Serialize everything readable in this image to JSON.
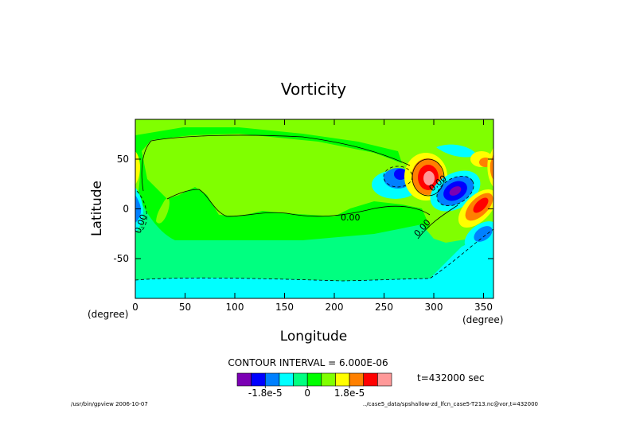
{
  "chart_data": {
    "type": "contour",
    "title": "Vorticity",
    "xlabel": "Longitude",
    "ylabel": "Latitude",
    "x_unit": "(degree)",
    "y_unit": "(degree)",
    "xlim": [
      0,
      360
    ],
    "ylim": [
      -90,
      90
    ],
    "x_ticks": [
      "0",
      "50",
      "100",
      "150",
      "200",
      "250",
      "300",
      "350"
    ],
    "y_ticks": [
      "-50",
      "0",
      "50"
    ],
    "contour_labels": [
      "0.00",
      "0.00",
      "0.00",
      "0.00"
    ],
    "contour_interval_text": "CONTOUR INTERVAL = 6.000E-06",
    "time_text": "t=432000 sec",
    "colorbar": {
      "colors": [
        "#7b00b4",
        "#0000ff",
        "#0080ff",
        "#00ffff",
        "#00ff80",
        "#00ff00",
        "#80ff00",
        "#ffff00",
        "#ff8000",
        "#ff0000",
        "#ff9999"
      ],
      "tick_labels": [
        "-1.8e-5",
        "0",
        "1.8e-5"
      ]
    },
    "palette": {
      "violet": "#7b00b4",
      "blue": "#0000ff",
      "azure": "#0080ff",
      "cyan": "#00ffff",
      "spring": "#00ff80",
      "green": "#00ff00",
      "lime": "#80ff00",
      "yellow": "#ffff00",
      "orange": "#ff8000",
      "red": "#ff0000",
      "pink": "#ff9999"
    }
  },
  "footer": {
    "left": "/usr/bin/gpview  2006-10-07",
    "right": "../case5_data/spshallow-zd_lfcn_case5-T213.nc@vor,t=432000"
  }
}
